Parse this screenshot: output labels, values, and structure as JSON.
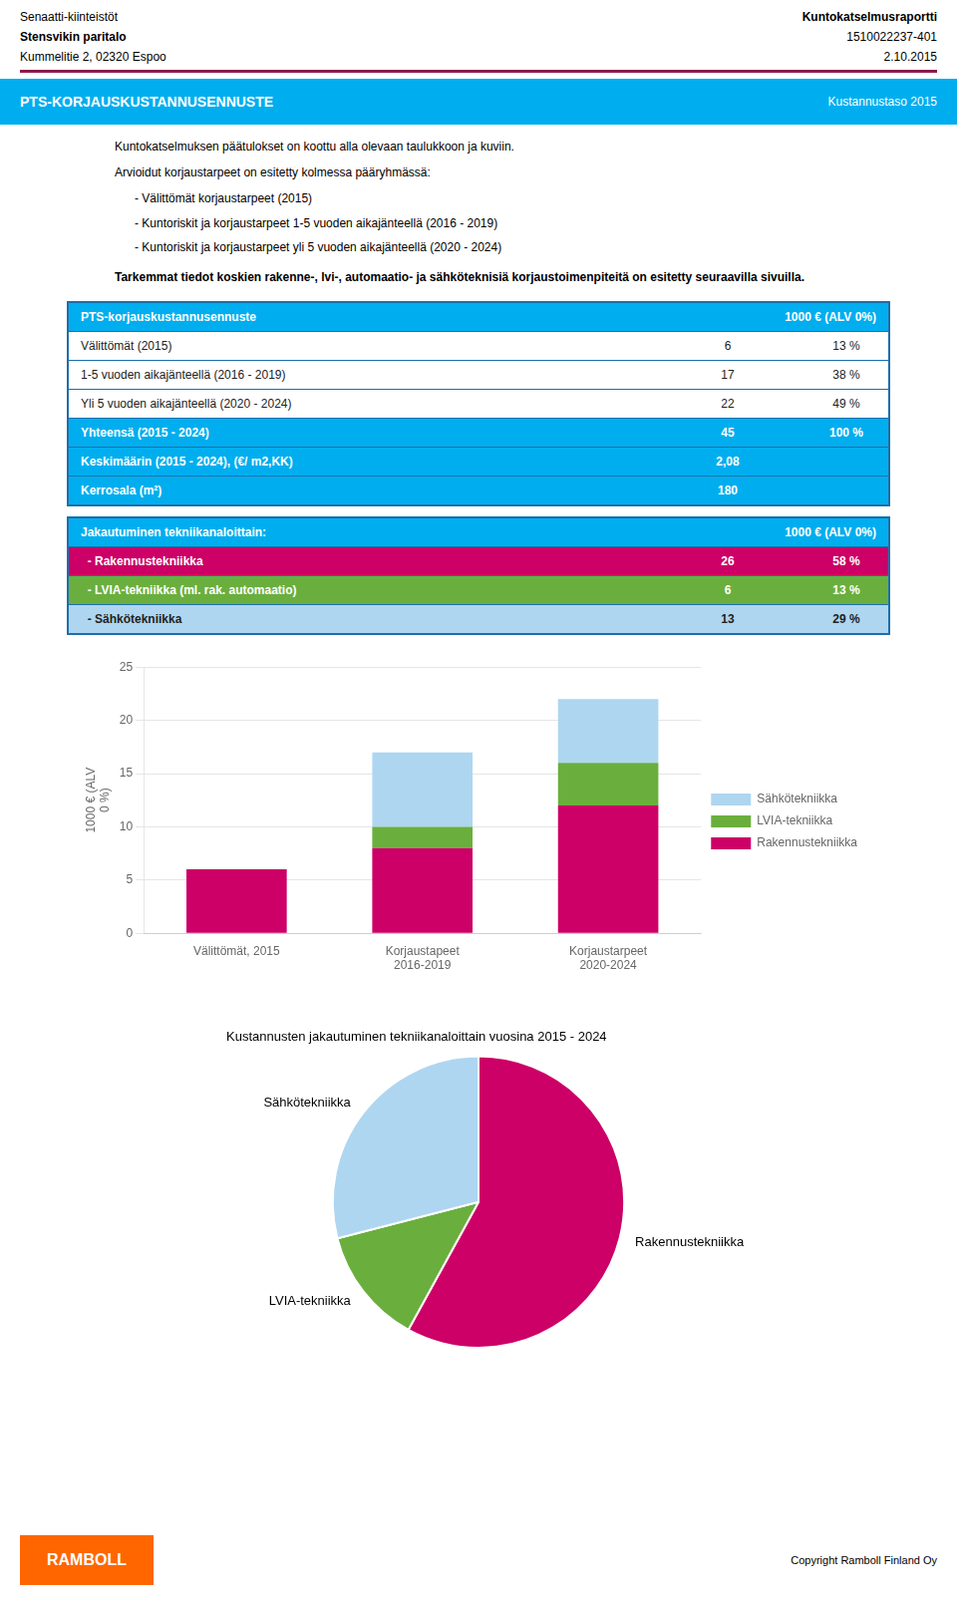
{
  "header": {
    "left": [
      "Senaatti-kiinteistöt",
      "Stensvikin paritalo",
      "Kummelitie 2,  02320 Espoo"
    ],
    "right": [
      "Kuntokatselmusraportti",
      "1510022237-401",
      "2.10.2015"
    ]
  },
  "separator_color": "#8B1A4A",
  "banner": {
    "left": "PTS-KORJAUSKUSTANNUSENNUSTE",
    "right": "Kustannustaso 2015",
    "color": "#00AEEF"
  },
  "text": {
    "paragraphs": [
      "Kuntokatselmuksen päätulokset on koottu alla olevaan taulukkoon ja kuviin.",
      "Arvioidut korjaustarpeet on esitetty kolmessa pääryhmässä:"
    ],
    "bullets": [
      "- Välittömät korjaustarpeet (2015)",
      "- Kuntoriskit ja korjaustarpeet 1-5 vuoden aikajänteellä (2016 - 2019)",
      "- Kuntoriskit ja korjaustarpeet yli 5 vuoden aikajänteellä (2020 - 2024)"
    ],
    "bold": "Tarkemmat tiedot koskien rakenne-, lvi-, automaatio- ja sähköteknisiä korjaustoimenpiteitä on esitetty seuraavilla sivuilla."
  },
  "tables": [
    {
      "border_color": "#1B6FAB",
      "header": {
        "color": "#00AEEF",
        "cells": [
          "PTS-korjauskustannusennuste",
          "1000 € (ALV 0%)"
        ]
      },
      "rows": [
        {
          "color": "#FFFFFF",
          "cells": [
            "Välittömät (2015)",
            "6",
            "13 %"
          ]
        },
        {
          "color": "#FFFFFF",
          "cells": [
            "1-5 vuoden aikajänteellä (2016 - 2019)",
            "17",
            "38 %"
          ]
        },
        {
          "color": "#FFFFFF",
          "cells": [
            "Yli 5 vuoden aikajänteellä (2020 - 2024)",
            "22",
            "49 %"
          ]
        },
        {
          "color": "#00AEEF",
          "cells": [
            "Yhteensä (2015 - 2024)",
            "45",
            "100 %"
          ]
        },
        {
          "color": "#00AEEF",
          "cells": [
            "Keskimäärin (2015 - 2024), (€/ m2,KK)",
            "2,08"
          ]
        },
        {
          "color": "#00AEEF",
          "cells": [
            "Kerrosala (m²)",
            "180"
          ]
        }
      ]
    },
    {
      "border_color": "#1B6FAB",
      "header": {
        "color": "#00AEEF",
        "cells": [
          "Jakautuminen tekniikanaloittain:",
          "1000 € (ALV 0%)"
        ]
      },
      "rows": [
        {
          "color": "#CC0066",
          "cells": [
            "  - Rakennustekniikka",
            "26",
            "58 %"
          ]
        },
        {
          "color": "#6AAF3D",
          "cells": [
            "  - LVIA-tekniikka (ml. rak. automaatio)",
            "6",
            "13 %"
          ]
        },
        {
          "color": "#AED6F1",
          "cells": [
            "  - Sähkötekniikka",
            "13",
            "29 %"
          ]
        }
      ]
    }
  ],
  "chart_data": [
    {
      "type": "bar",
      "stacked": true,
      "categories": [
        "Välittömät, 2015",
        "Korjaustapeet\n2016-2019",
        "Korjaustarpeet\n2020-2024"
      ],
      "series": [
        {
          "name": "Rakennustekniikka",
          "color": "#CC0066",
          "values": [
            6,
            8,
            12
          ]
        },
        {
          "name": "LVIA-tekniikka",
          "color": "#6AAF3D",
          "values": [
            0,
            2,
            4
          ]
        },
        {
          "name": "Sähkötekniikka",
          "color": "#AED6F1",
          "values": [
            0,
            7,
            6
          ]
        }
      ],
      "ylabel": "1000 € (ALV\n0 %)",
      "ylim": [
        0,
        25
      ],
      "yticks": [
        0,
        5,
        10,
        15,
        20,
        25
      ],
      "grid": true,
      "legend": "right"
    },
    {
      "type": "pie",
      "title": "Kustannusten jakautuminen tekniikanaloittain vuosina 2015 - 2024",
      "categories": [
        "Rakennustekniikka",
        "LVIA-tekniikka",
        "Sähkötekniikka"
      ],
      "values": [
        58,
        13,
        29
      ],
      "colors": [
        "#CC0066",
        "#6AAF3D",
        "#AED6F1"
      ]
    }
  ],
  "footer": {
    "logo": "RAMBOLL",
    "logo_color": "#FF6600",
    "right": "Copyright Ramboll Finland Oy"
  }
}
